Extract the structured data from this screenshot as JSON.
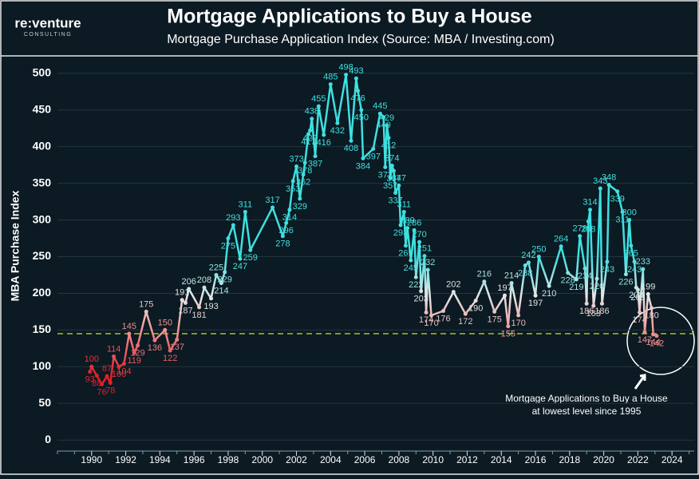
{
  "chart_data": {
    "type": "line",
    "title": "Mortgage Applications to Buy a House",
    "subtitle": "Mortgage Purchase Application Index (Source: MBA / Investing.com)",
    "logo": "re:venture",
    "logo_sub": "CONSULTING",
    "y_label": "MBA Purchase Index",
    "annotation": [
      "Mortgage Applications to Buy a House",
      "at lowest level since 1995"
    ],
    "reference_line": 145,
    "reference_color": "#a8c02a",
    "line_colors": [
      "#e3202a",
      "#e3202a",
      "#e3202a",
      "#f08c8c",
      "#e6e6e6",
      "#3ee0e0",
      "#3ee0e0",
      "#3ee0e0",
      "#3ee0e0",
      "#3ee0e0",
      "#3ee0e0"
    ],
    "grid": true,
    "xlim": [
      1988,
      2025.3
    ],
    "xticks": [
      1990,
      1992,
      1994,
      1996,
      1998,
      2000,
      2002,
      2004,
      2006,
      2008,
      2010,
      2012,
      2014,
      2016,
      2018,
      2020,
      2022,
      2024
    ],
    "ylim": [
      -15,
      515
    ],
    "yticks": [
      0,
      50,
      100,
      150,
      200,
      250,
      300,
      350,
      400,
      450,
      500
    ],
    "x": [
      1989.9,
      1990.0,
      1990.3,
      1990.6,
      1990.9,
      1991.1,
      1991.3,
      1991.6,
      1991.9,
      1992.2,
      1992.5,
      1992.7,
      1993.2,
      1993.7,
      1994.3,
      1994.6,
      1995.0,
      1995.3,
      1995.5,
      1995.7,
      1996.3,
      1996.6,
      1997.0,
      1997.3,
      1997.6,
      1997.8,
      1998.0,
      1998.3,
      1998.7,
      1999.0,
      1999.3,
      2000.6,
      2001.2,
      2001.4,
      2001.6,
      2001.8,
      2002.0,
      2002.2,
      2002.4,
      2002.5,
      2002.7,
      2002.8,
      2002.9,
      2003.1,
      2003.3,
      2003.6,
      2004.0,
      2004.4,
      2004.9,
      2005.2,
      2005.5,
      2005.6,
      2005.8,
      2005.9,
      2006.5,
      2006.9,
      2007.1,
      2007.2,
      2007.3,
      2007.4,
      2007.5,
      2007.6,
      2007.7,
      2007.8,
      2008.0,
      2008.1,
      2008.3,
      2008.4,
      2008.5,
      2008.7,
      2008.9,
      2009.0,
      2009.2,
      2009.3,
      2009.5,
      2009.6,
      2009.7,
      2009.9,
      2010.6,
      2011.2,
      2011.9,
      2012.5,
      2013.0,
      2013.6,
      2014.2,
      2014.4,
      2014.6,
      2015.0,
      2015.4,
      2015.6,
      2016.0,
      2016.2,
      2016.8,
      2017.5,
      2017.9,
      2018.4,
      2018.6,
      2018.9,
      2019.0,
      2019.1,
      2019.2,
      2019.4,
      2019.6,
      2019.8,
      2019.9,
      2020.2,
      2020.3,
      2020.8,
      2021.1,
      2021.3,
      2021.5,
      2021.6,
      2021.8,
      2021.9,
      2022.0,
      2022.1,
      2022.3,
      2022.4,
      2022.6,
      2022.8,
      2022.9,
      2023.1
    ],
    "values": [
      93,
      100,
      88,
      76,
      87,
      78,
      114,
      100,
      104,
      145,
      119,
      129,
      175,
      136,
      150,
      122,
      137,
      191,
      187,
      206,
      181,
      208,
      193,
      225,
      214,
      229,
      275,
      293,
      247,
      311,
      259,
      317,
      278,
      296,
      314,
      353,
      373,
      329,
      362,
      378,
      417,
      422,
      438,
      387,
      455,
      416,
      485,
      432,
      498,
      408,
      493,
      476,
      450,
      384,
      397,
      445,
      440,
      372,
      429,
      412,
      357,
      374,
      367,
      337,
      347,
      293,
      311,
      265,
      289,
      245,
      286,
      222,
      270,
      203,
      251,
      174,
      232,
      170,
      176,
      202,
      172,
      190,
      216,
      175,
      197,
      155,
      214,
      170,
      238,
      242,
      197,
      250,
      210,
      264,
      228,
      219,
      278,
      234,
      186,
      298,
      314,
      183,
      220,
      343,
      186,
      243,
      348,
      339,
      311,
      226,
      300,
      265,
      243,
      208,
      205,
      174,
      233,
      147,
      199,
      180,
      144,
      142
    ]
  }
}
